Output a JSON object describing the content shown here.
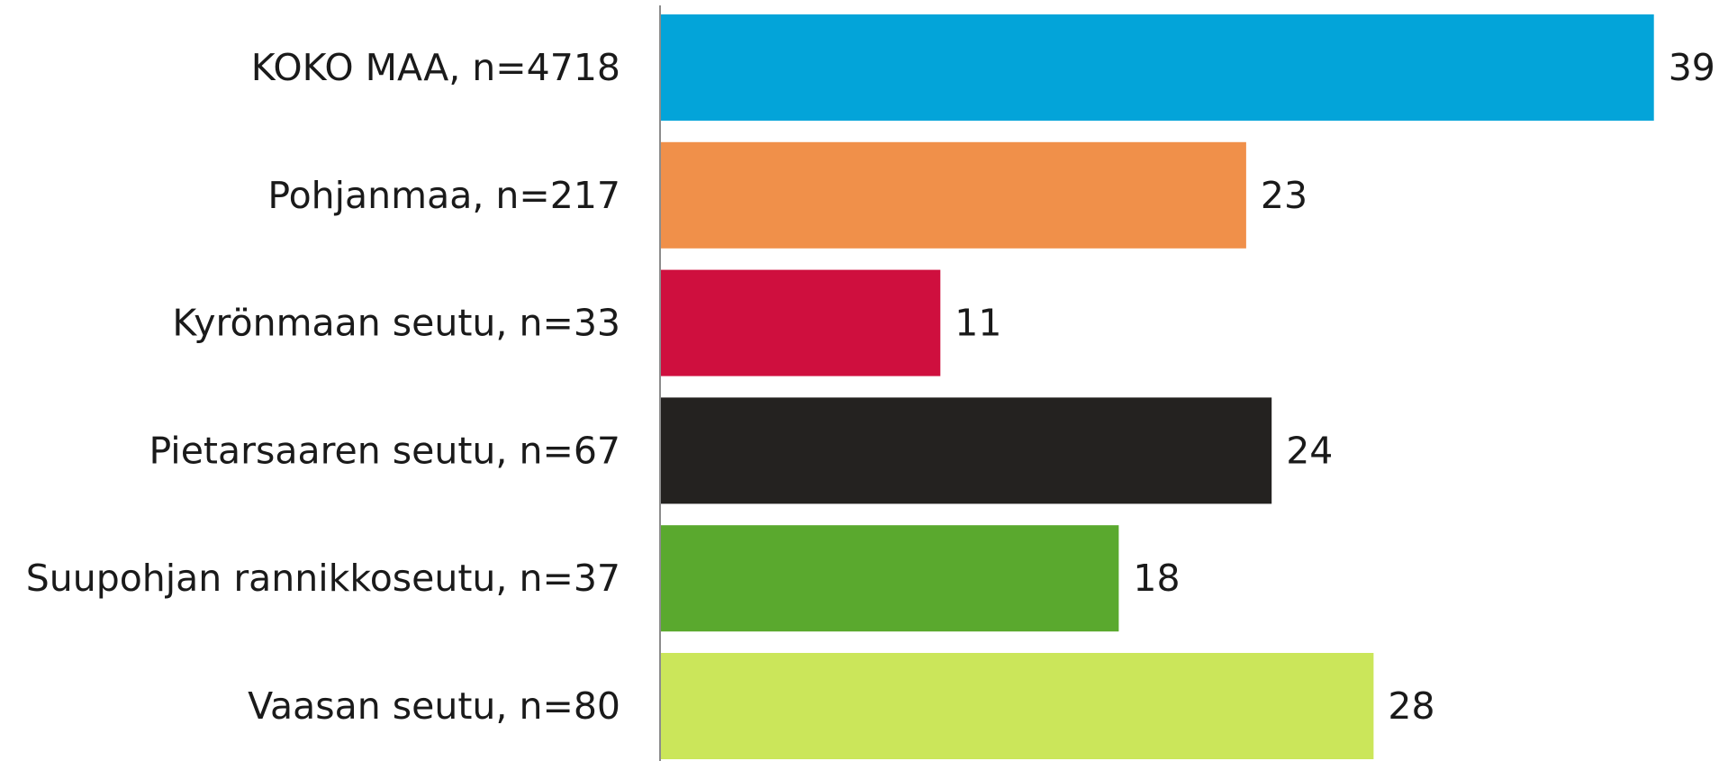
{
  "chart_data": {
    "type": "bar",
    "orientation": "horizontal",
    "categories": [
      "KOKO MAA, n=4718",
      "Pohjanmaa, n=217",
      "Kyrönmaan seutu, n=33",
      "Pietarsaaren seutu, n=67",
      "Suupohjan rannikkoseutu, n=37",
      "Vaasan seutu, n=80"
    ],
    "values": [
      39,
      23,
      11,
      24,
      18,
      28
    ],
    "data_labels": [
      "39",
      "23",
      "11",
      "24",
      "18",
      "28"
    ],
    "colors": [
      "#03a4d9",
      "#f0904a",
      "#cf0f3e",
      "#242220",
      "#5aa92e",
      "#cbe65a"
    ],
    "xlim": [
      0,
      40
    ],
    "grid": false,
    "legend": "none"
  }
}
